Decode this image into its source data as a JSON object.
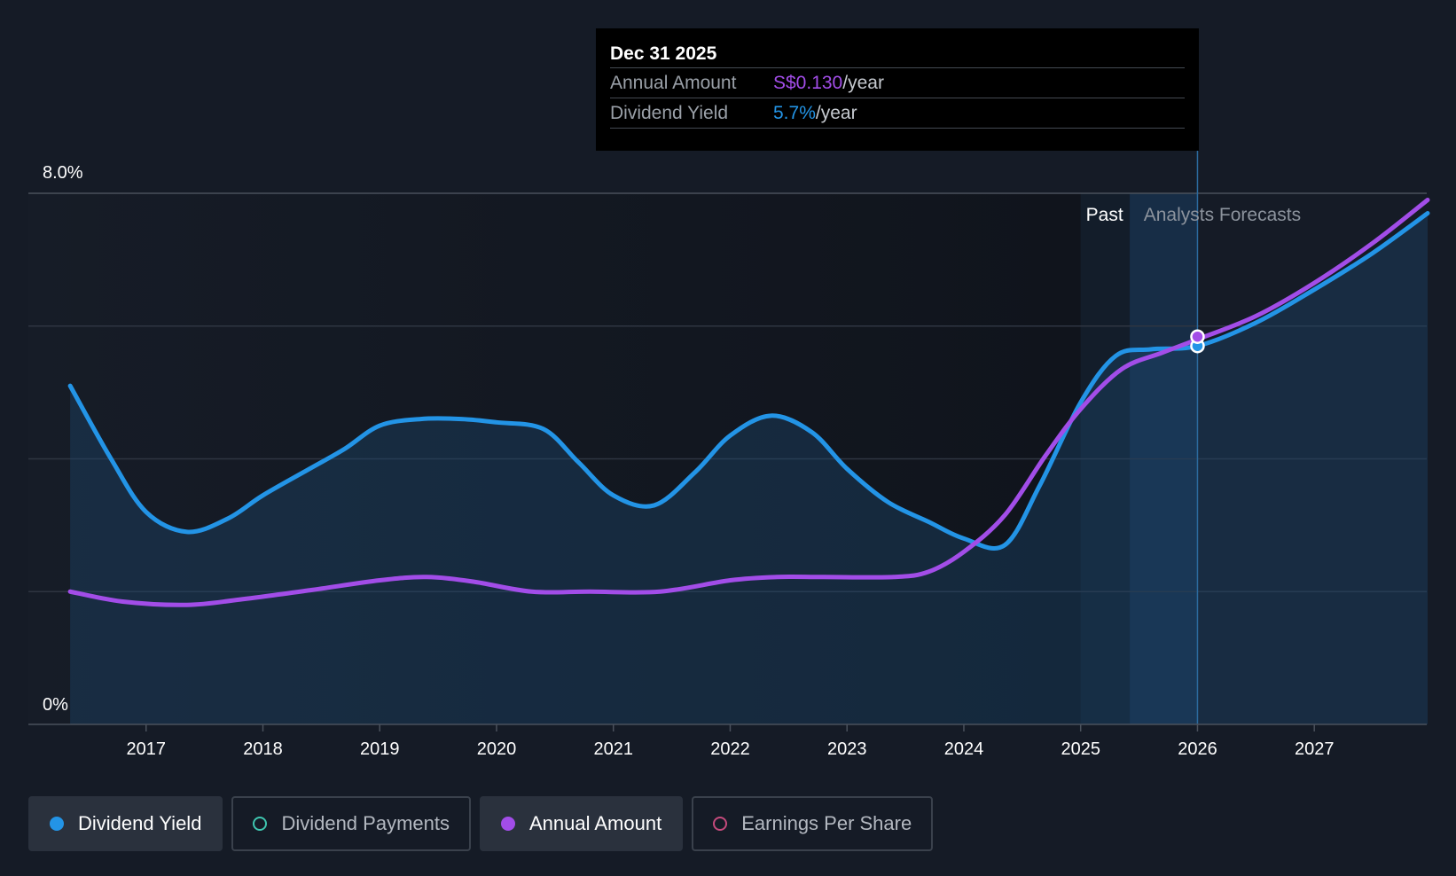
{
  "chart_data": {
    "type": "line",
    "x_axis": {
      "min": 2016.0,
      "max": 2027.97,
      "ticks": [
        "2017",
        "2018",
        "2019",
        "2020",
        "2021",
        "2022",
        "2023",
        "2024",
        "2025",
        "2026",
        "2027"
      ]
    },
    "y_axis": {
      "min": 0,
      "max": 8,
      "labels": {
        "top": "8.0%",
        "bottom": "0%"
      },
      "gridlines": [
        2,
        4,
        6,
        8
      ]
    },
    "regions": {
      "past_label": "Past",
      "forecast_label": "Analysts Forecasts",
      "past_end": 2025.0,
      "shaded_start": 2025.42,
      "highlight": 2026.0
    },
    "series": [
      {
        "name": "Dividend Yield",
        "color": "#2394e6",
        "unit": "%",
        "points": [
          [
            2016.35,
            5.1
          ],
          [
            2016.7,
            4.0
          ],
          [
            2017.0,
            3.2
          ],
          [
            2017.35,
            2.9
          ],
          [
            2017.7,
            3.1
          ],
          [
            2018.0,
            3.45
          ],
          [
            2018.4,
            3.85
          ],
          [
            2018.7,
            4.15
          ],
          [
            2019.0,
            4.5
          ],
          [
            2019.35,
            4.6
          ],
          [
            2019.7,
            4.6
          ],
          [
            2020.0,
            4.55
          ],
          [
            2020.4,
            4.45
          ],
          [
            2020.7,
            3.95
          ],
          [
            2021.0,
            3.45
          ],
          [
            2021.35,
            3.3
          ],
          [
            2021.7,
            3.8
          ],
          [
            2022.0,
            4.35
          ],
          [
            2022.35,
            4.65
          ],
          [
            2022.7,
            4.4
          ],
          [
            2023.0,
            3.85
          ],
          [
            2023.35,
            3.35
          ],
          [
            2023.7,
            3.05
          ],
          [
            2024.0,
            2.8
          ],
          [
            2024.35,
            2.7
          ],
          [
            2024.65,
            3.6
          ],
          [
            2025.0,
            4.85
          ],
          [
            2025.3,
            5.55
          ],
          [
            2025.6,
            5.65
          ],
          [
            2026.0,
            5.7
          ],
          [
            2026.5,
            6.05
          ],
          [
            2027.0,
            6.55
          ],
          [
            2027.5,
            7.1
          ],
          [
            2027.97,
            7.7
          ]
        ]
      },
      {
        "name": "Annual Amount",
        "color": "#a24de8",
        "points": [
          [
            2016.35,
            2.0
          ],
          [
            2016.8,
            1.85
          ],
          [
            2017.35,
            1.8
          ],
          [
            2017.8,
            1.88
          ],
          [
            2018.4,
            2.02
          ],
          [
            2019.0,
            2.17
          ],
          [
            2019.4,
            2.22
          ],
          [
            2019.8,
            2.15
          ],
          [
            2020.3,
            2.0
          ],
          [
            2020.8,
            2.0
          ],
          [
            2021.4,
            2.0
          ],
          [
            2022.0,
            2.17
          ],
          [
            2022.4,
            2.22
          ],
          [
            2022.8,
            2.22
          ],
          [
            2023.4,
            2.22
          ],
          [
            2023.7,
            2.3
          ],
          [
            2024.0,
            2.6
          ],
          [
            2024.35,
            3.15
          ],
          [
            2024.7,
            4.05
          ],
          [
            2025.0,
            4.75
          ],
          [
            2025.35,
            5.35
          ],
          [
            2025.7,
            5.6
          ],
          [
            2026.0,
            5.8
          ],
          [
            2026.5,
            6.15
          ],
          [
            2027.0,
            6.65
          ],
          [
            2027.5,
            7.25
          ],
          [
            2027.97,
            7.9
          ]
        ]
      }
    ]
  },
  "tooltip": {
    "date": "Dec 31 2025",
    "annual_label": "Annual Amount",
    "annual_value": "S$0.130",
    "annual_suffix": "/year",
    "yield_label": "Dividend Yield",
    "yield_value": "5.7%",
    "yield_suffix": "/year"
  },
  "legend": [
    {
      "label": "Dividend Yield",
      "active": true,
      "color": "#2394e6",
      "filled": true
    },
    {
      "label": "Dividend Payments",
      "active": false,
      "color": "#3fc6b0",
      "filled": false
    },
    {
      "label": "Annual Amount",
      "active": true,
      "color": "#a24de8",
      "filled": true
    },
    {
      "label": "Earnings Per Share",
      "active": false,
      "color": "#c44a7c",
      "filled": false
    }
  ]
}
